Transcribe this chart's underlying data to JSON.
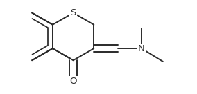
{
  "bg_color": "#ffffff",
  "line_color": "#2a2a2a",
  "line_width": 1.4,
  "dbo": 0.012,
  "figsize": [
    2.84,
    1.36
  ],
  "dpi": 100,
  "xlim": [
    0.0,
    1.0
  ],
  "ylim": [
    0.0,
    1.0
  ],
  "S_label": "S",
  "O_label": "O",
  "N_label": "N",
  "label_fontsize": 9.5,
  "label_fontfamily": "DejaVu Sans"
}
